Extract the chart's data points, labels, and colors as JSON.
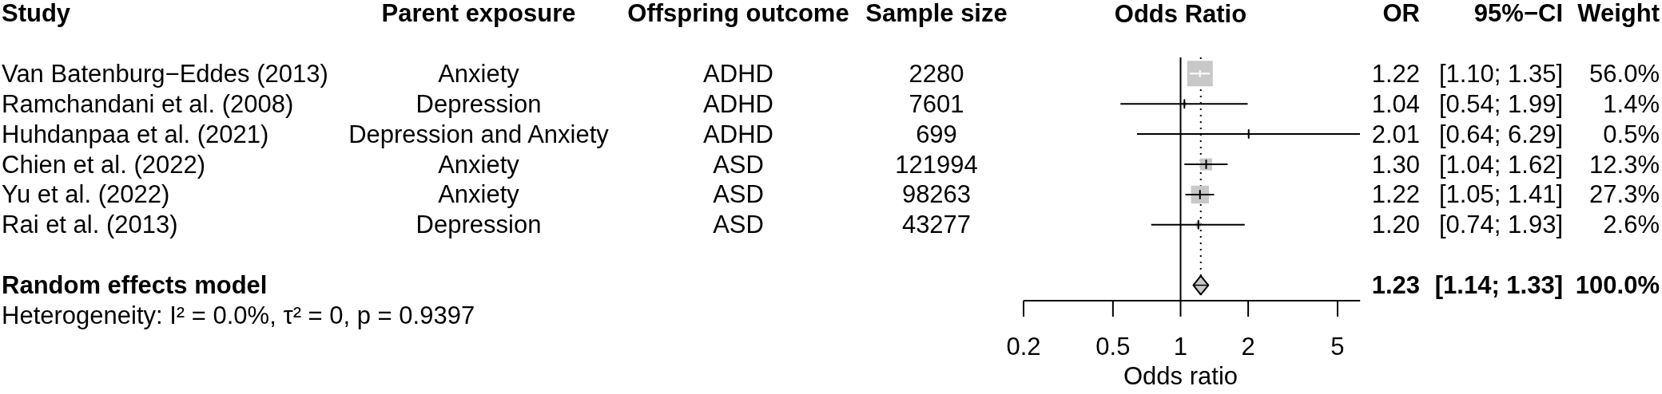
{
  "chart_data": [
    {
      "type": "other",
      "title": "Study",
      "annotations": [
        "Van Batenburg−Eddes (2013)",
        "Ramchandani et al. (2008)",
        "Huhdanpaa et al. (2021)",
        "Chien et al. (2022)",
        "Yu et al. (2022)",
        "Rai et al. (2013)",
        "Random effects model",
        "Heterogeneity: I² = 0.0%, τ² = 0, p = 0.9397"
      ]
    },
    {
      "type": "other",
      "title": "Parent exposure",
      "annotations": [
        "Anxiety",
        "Depression",
        "Depression and Anxiety",
        "Anxiety",
        "Anxiety",
        "Depression"
      ]
    },
    {
      "type": "other",
      "title": "Offspring outcome",
      "annotations": [
        "ADHD",
        "ADHD",
        "ADHD",
        "ASD",
        "ASD",
        "ASD"
      ]
    },
    {
      "type": "other",
      "title": "Sample size",
      "annotations": [
        "2280",
        "7601",
        "699",
        "121994",
        "98263",
        "43277"
      ]
    },
    {
      "type": "bubble",
      "title": "Odds Ratio",
      "xlabel": "Odds ratio",
      "orientation": "horizontal",
      "categories": [
        null,
        null,
        null,
        null,
        null,
        null,
        null,
        null
      ],
      "series": [
        {
          "color": "#c8c8c8",
          "marker": "square",
          "values": [
            1.22,
            1.04,
            2.01,
            1.3,
            1.22,
            1.2,
            null,
            null
          ],
          "errors": [
            [
              1.1,
              1.35
            ],
            [
              0.54,
              1.99
            ],
            [
              0.64,
              6.29
            ],
            [
              1.04,
              1.62
            ],
            [
              1.05,
              1.41
            ],
            [
              0.74,
              1.93
            ],
            null,
            null
          ],
          "sizes": [
            1,
            0.025,
            0.009,
            0.22,
            0.49,
            0.046,
            null,
            null
          ]
        },
        {
          "type": "scatter",
          "color": "#c8c8c8",
          "marker": "diamond",
          "values": [
            null,
            null,
            null,
            null,
            null,
            null,
            null,
            1.23
          ],
          "errors": [
            null,
            null,
            null,
            null,
            null,
            null,
            null,
            [
              1.14,
              1.33
            ]
          ]
        }
      ],
      "log": "x",
      "xlim": [
        0.2,
        6.3
      ],
      "xticks": [
        0.2,
        0.5,
        1,
        2,
        5
      ],
      "ref_lines": [
        {
          "axis": "x",
          "value": 1
        },
        {
          "axis": "x",
          "value": 1.23,
          "line_style": "dotted"
        }
      ]
    },
    {
      "type": "other",
      "title": "OR",
      "annotations": [
        "1.22",
        "1.04",
        "2.01",
        "1.30",
        "1.22",
        "1.20",
        "1.23"
      ]
    },
    {
      "type": "other",
      "title": "95%−CI",
      "annotations": [
        "[1.10; 1.35]",
        "[0.54; 1.99]",
        "[0.64; 6.29]",
        "[1.04; 1.62]",
        "[1.05; 1.41]",
        "[0.74; 1.93]",
        "[1.14; 1.33]"
      ]
    },
    {
      "type": "other",
      "title": "Weight",
      "annotations": [
        "56.0%",
        "1.4%",
        "0.5%",
        "12.3%",
        "27.3%",
        "2.6%",
        "100.0%"
      ]
    }
  ]
}
